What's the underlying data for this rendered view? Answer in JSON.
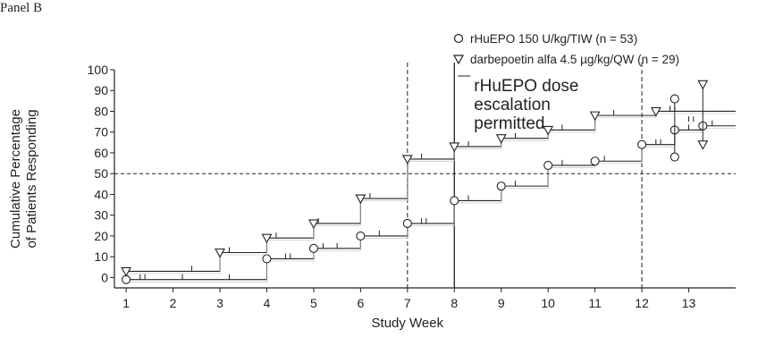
{
  "panel_label": "Panel B",
  "chart_data": {
    "type": "line",
    "title": "",
    "xlabel": "Study Week",
    "ylabel_lines": [
      "Cumulative Percentage",
      "of Patients Responding"
    ],
    "x_ticks": [
      1,
      2,
      3,
      4,
      5,
      6,
      7,
      8,
      9,
      10,
      11,
      12,
      13
    ],
    "y_ticks": [
      0,
      10,
      20,
      30,
      40,
      50,
      60,
      70,
      80,
      90,
      100
    ],
    "xlim": [
      0.75,
      14.0
    ],
    "ylim": [
      -5,
      100
    ],
    "legend_position": "top-right",
    "reference_line_y": 50,
    "dashed_vertical_x": [
      7,
      12
    ],
    "solid_vertical_x": 8,
    "annotation_lines": [
      "rHuEPO dose",
      "escalation",
      "permitted"
    ],
    "series": [
      {
        "name": "rHuEPO 150 U/kg/TIW (n = 53)",
        "marker": "circle",
        "steps": [
          [
            1.0,
            -1
          ],
          [
            4.0,
            9
          ],
          [
            5.0,
            14
          ],
          [
            6.0,
            20
          ],
          [
            7.0,
            26
          ],
          [
            8.0,
            37
          ],
          [
            9.0,
            44
          ],
          [
            10.0,
            54
          ],
          [
            11.0,
            56
          ],
          [
            12.0,
            64
          ],
          [
            12.7,
            71
          ],
          [
            13.3,
            73
          ]
        ],
        "end_x": 14.0,
        "censor_marks": [
          [
            1.3,
            -1
          ],
          [
            1.4,
            -1
          ],
          [
            2.2,
            -1
          ],
          [
            3.2,
            -1
          ],
          [
            4.4,
            9
          ],
          [
            4.5,
            9
          ],
          [
            5.2,
            14
          ],
          [
            5.5,
            14
          ],
          [
            6.4,
            20
          ],
          [
            7.3,
            26
          ],
          [
            7.4,
            26
          ],
          [
            8.3,
            37
          ],
          [
            9.3,
            44
          ],
          [
            10.3,
            54
          ],
          [
            11.2,
            56
          ],
          [
            12.3,
            64
          ],
          [
            12.4,
            64
          ],
          [
            13.0,
            71
          ],
          [
            13.5,
            73
          ]
        ],
        "extra_points": [
          [
            12.7,
            86
          ],
          [
            12.7,
            58
          ]
        ]
      },
      {
        "name": "darbepoetin alfa 4.5 µg/kg/QW (n = 29)",
        "marker": "triangle",
        "steps": [
          [
            1.0,
            3
          ],
          [
            3.0,
            12
          ],
          [
            4.0,
            19
          ],
          [
            5.0,
            26
          ],
          [
            6.0,
            38
          ],
          [
            7.0,
            57
          ],
          [
            8.0,
            63
          ],
          [
            9.0,
            67
          ],
          [
            10.0,
            71
          ],
          [
            11.0,
            78
          ],
          [
            12.3,
            80
          ]
        ],
        "end_x": 14.0,
        "censor_marks": [
          [
            2.4,
            3
          ],
          [
            3.2,
            12
          ],
          [
            4.2,
            19
          ],
          [
            5.1,
            26
          ],
          [
            6.2,
            38
          ],
          [
            7.3,
            57
          ],
          [
            8.3,
            63
          ],
          [
            9.3,
            67
          ],
          [
            10.3,
            71
          ],
          [
            11.4,
            78
          ],
          [
            12.6,
            80
          ],
          [
            12.7,
            80
          ],
          [
            13.0,
            75
          ],
          [
            13.1,
            75
          ]
        ],
        "extra_points": [
          [
            13.3,
            93
          ],
          [
            13.3,
            64
          ]
        ]
      }
    ]
  }
}
